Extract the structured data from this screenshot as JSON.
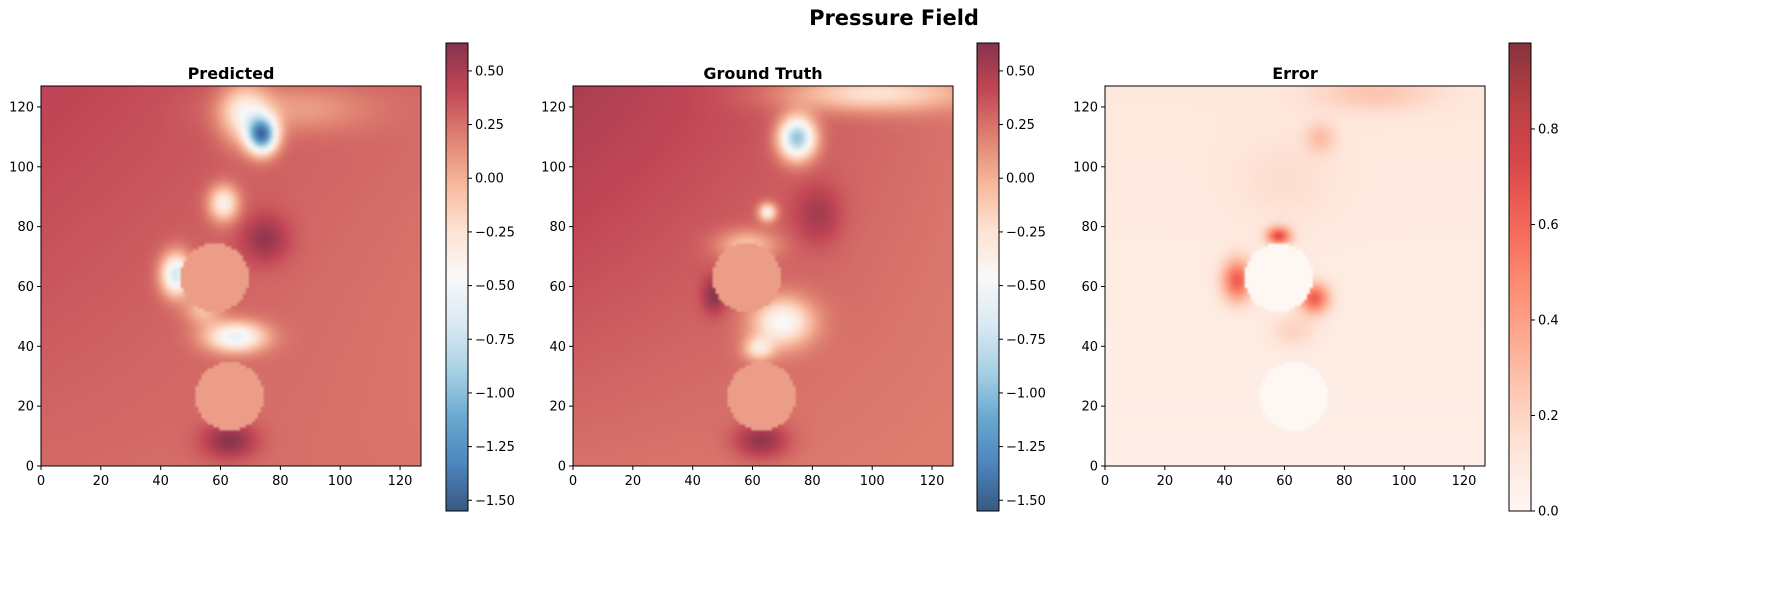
{
  "figure_title": "Pressure Field",
  "chart_data": [
    {
      "type": "heatmap",
      "title": "Predicted",
      "xlabel": "",
      "ylabel": "",
      "xlim": [
        0,
        127
      ],
      "ylim": [
        0,
        127
      ],
      "x_ticks": [
        0,
        20,
        40,
        60,
        80,
        100,
        120
      ],
      "y_ticks": [
        0,
        20,
        40,
        60,
        80,
        100,
        120
      ],
      "colormap": "RdBu_r",
      "colorbar_range": [
        -1.55,
        0.63
      ],
      "colorbar_ticks": [
        "0.50",
        "0.25",
        "0.00",
        "−0.25",
        "−0.50",
        "−0.75",
        "−1.00",
        "−1.25",
        "−1.50"
      ],
      "colorbar_tick_values": [
        0.5,
        0.25,
        0.0,
        -0.25,
        -0.5,
        -0.75,
        -1.0,
        -1.25,
        -1.5
      ],
      "obstacles": [
        {
          "center": [
            58,
            63
          ],
          "radius": 11.5,
          "value": 0.08
        },
        {
          "center": [
            63,
            23
          ],
          "radius": 11.5,
          "value": 0.08
        }
      ]
    },
    {
      "type": "heatmap",
      "title": "Ground Truth",
      "xlabel": "",
      "ylabel": "",
      "xlim": [
        0,
        127
      ],
      "ylim": [
        0,
        127
      ],
      "x_ticks": [
        0,
        20,
        40,
        60,
        80,
        100,
        120
      ],
      "y_ticks": [
        0,
        20,
        40,
        60,
        80,
        100,
        120
      ],
      "colormap": "RdBu_r",
      "colorbar_range": [
        -1.55,
        0.63
      ],
      "colorbar_ticks": [
        "0.50",
        "0.25",
        "0.00",
        "−0.25",
        "−0.50",
        "−0.75",
        "−1.00",
        "−1.25",
        "−1.50"
      ],
      "colorbar_tick_values": [
        0.5,
        0.25,
        0.0,
        -0.25,
        -0.5,
        -0.75,
        -1.0,
        -1.25,
        -1.5
      ],
      "obstacles": [
        {
          "center": [
            58,
            63
          ],
          "radius": 11.5,
          "value": 0.08
        },
        {
          "center": [
            63,
            23
          ],
          "radius": 11.5,
          "value": 0.08
        }
      ]
    },
    {
      "type": "heatmap",
      "title": "Error",
      "xlabel": "",
      "ylabel": "",
      "xlim": [
        0,
        127
      ],
      "ylim": [
        0,
        127
      ],
      "x_ticks": [
        0,
        20,
        40,
        60,
        80,
        100,
        120
      ],
      "y_ticks": [
        0,
        20,
        40,
        60,
        80,
        100,
        120
      ],
      "colormap": "Reds",
      "colorbar_range": [
        0.0,
        0.98
      ],
      "colorbar_ticks": [
        "0.8",
        "0.6",
        "0.4",
        "0.2",
        "0.0"
      ],
      "colorbar_tick_values": [
        0.8,
        0.6,
        0.4,
        0.2,
        0.0
      ],
      "obstacles": [
        {
          "center": [
            58,
            63
          ],
          "radius": 11.5,
          "value": 0.0
        },
        {
          "center": [
            63,
            23
          ],
          "radius": 11.5,
          "value": 0.0
        }
      ]
    }
  ]
}
